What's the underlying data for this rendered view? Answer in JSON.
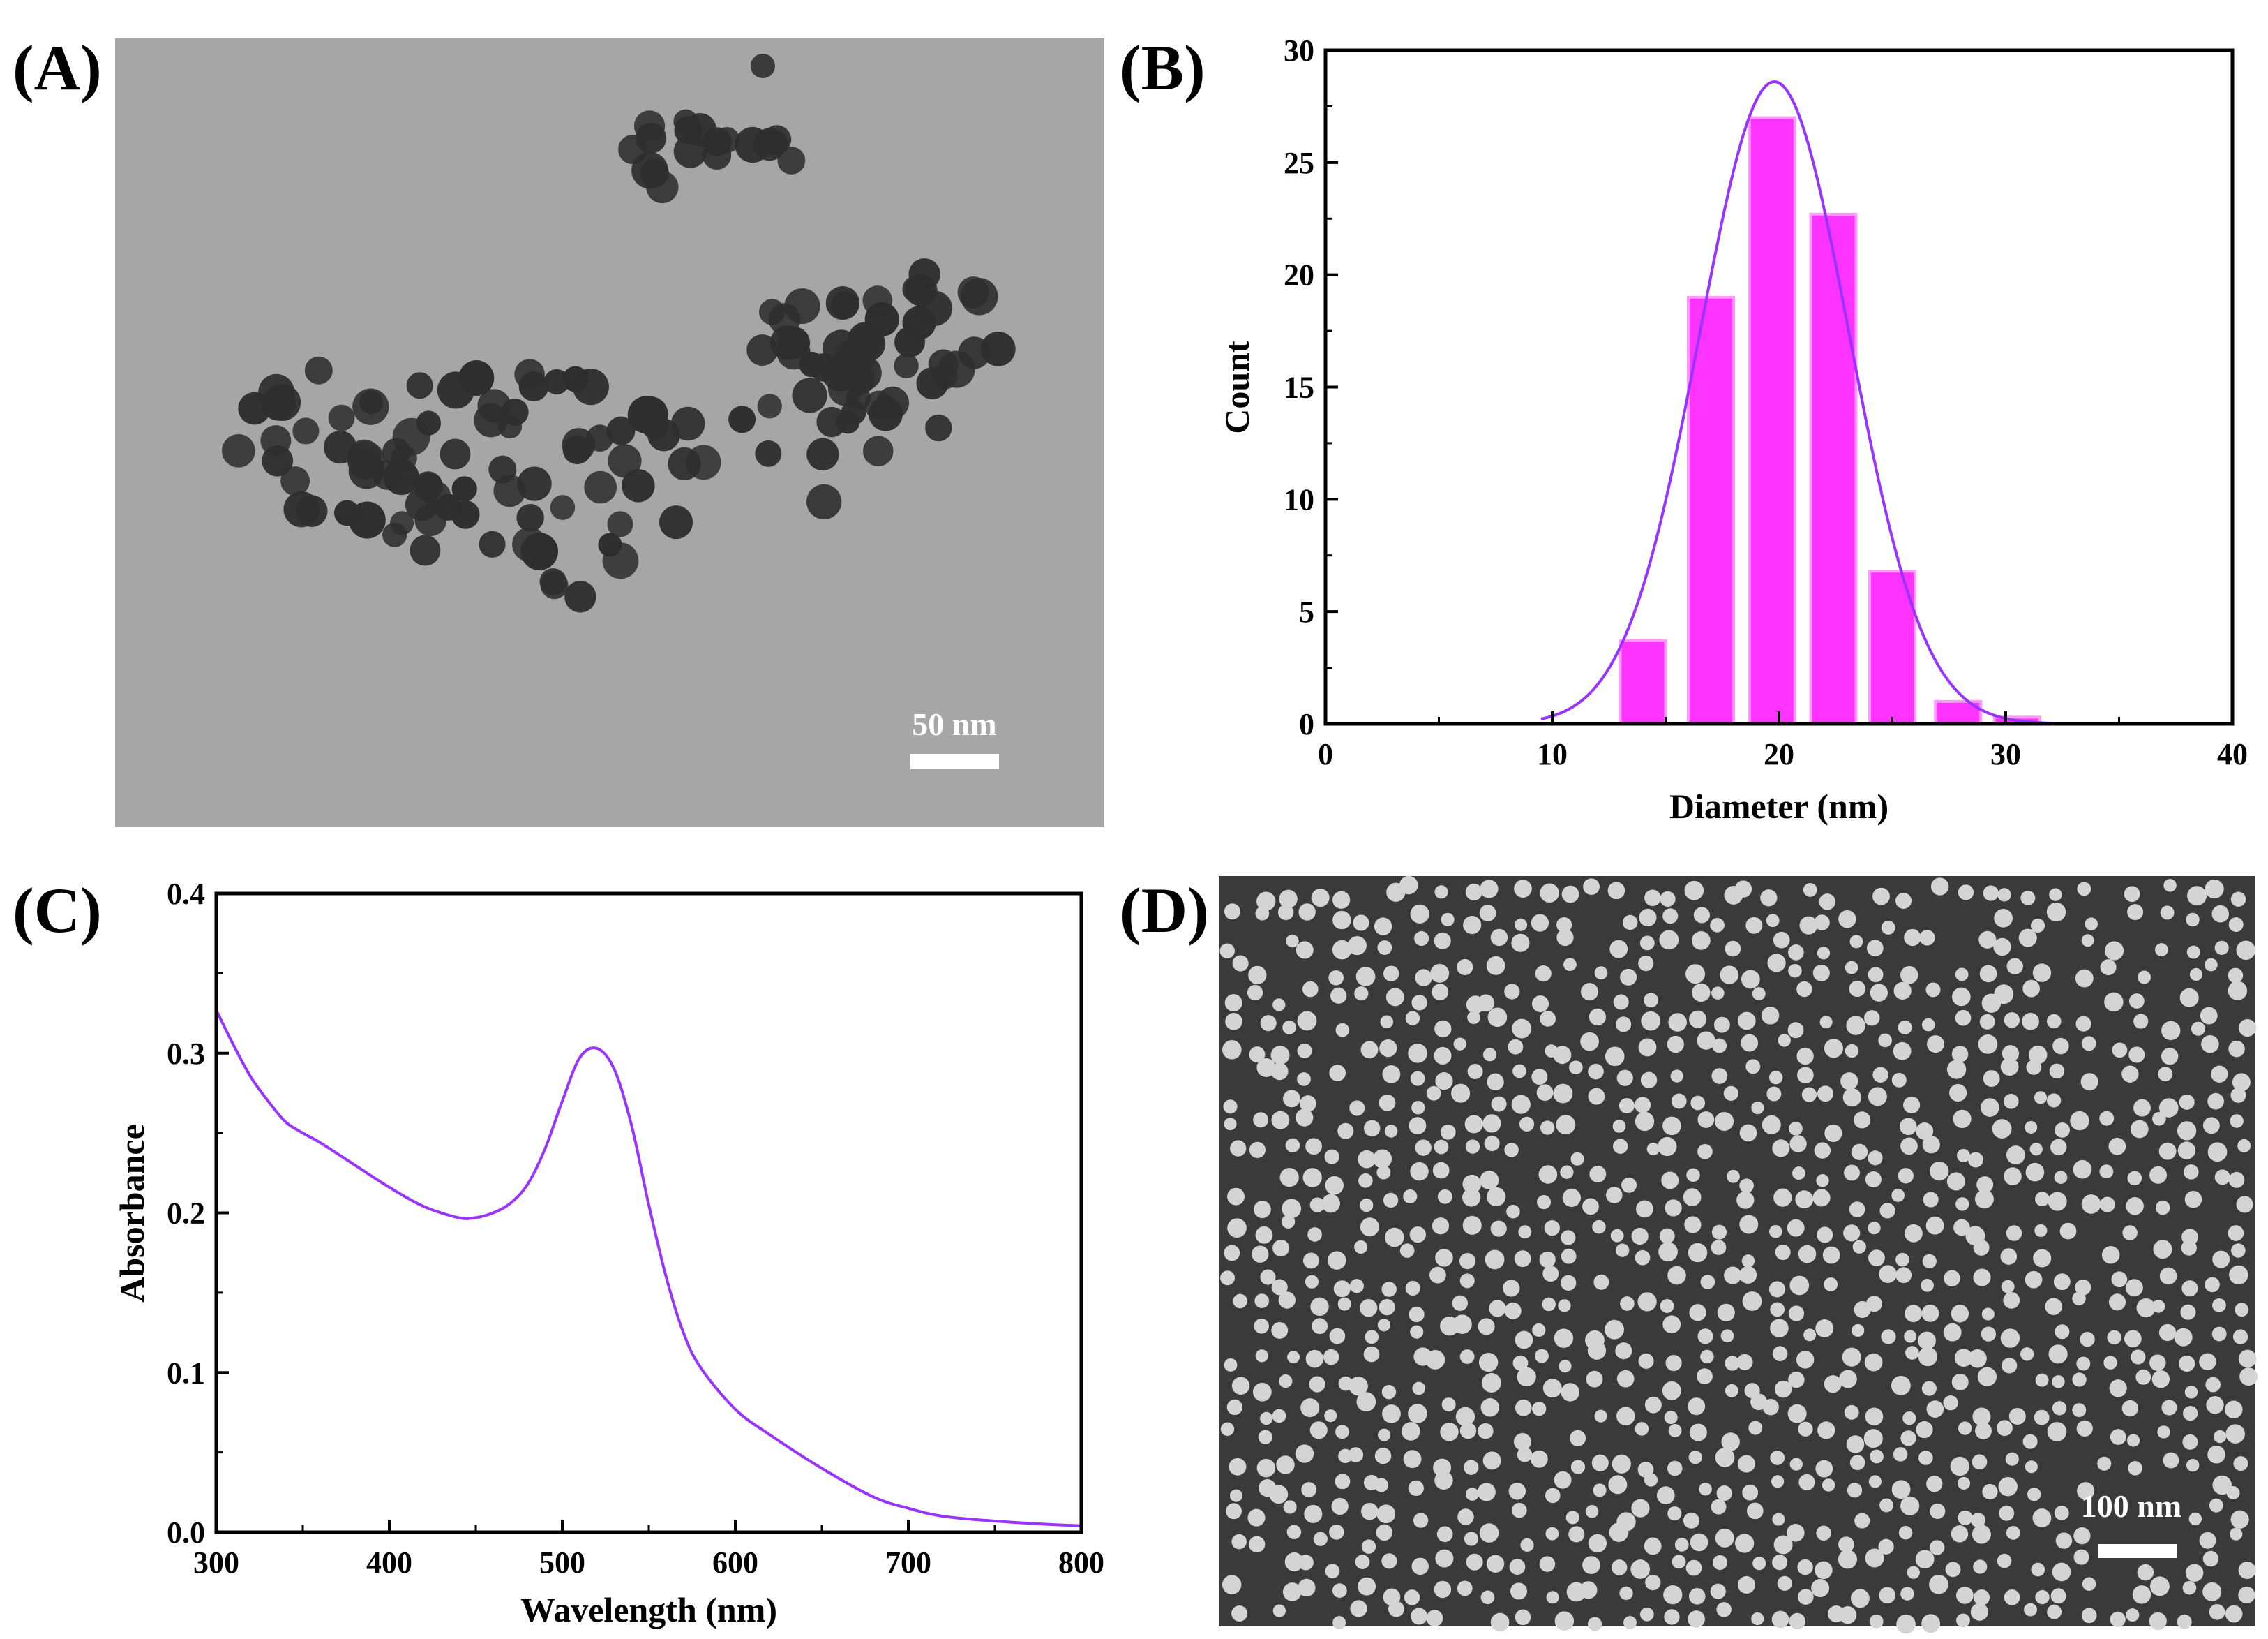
{
  "panels": {
    "a": {
      "label": "(A)",
      "scale_bar": "50 nm"
    },
    "b": {
      "label": "(B)"
    },
    "c": {
      "label": "(C)"
    },
    "d": {
      "label": "(D)",
      "scale_bar": "100 nm"
    }
  },
  "colors": {
    "histogram_bar": "#ff33ff",
    "histogram_edge": "#ff99ff",
    "fit_curve": "#9933ff",
    "spectrum_line": "#9933ff",
    "tem_background": "#a6a6a6",
    "tem_particle": "#2e2e2e",
    "sem_background": "#3a3a3a",
    "sem_particle": "#d4d4d4"
  },
  "chart_data": [
    {
      "id": "B",
      "type": "bar",
      "title": "",
      "xlabel": "Diameter (nm)",
      "ylabel": "Count",
      "xlim": [
        0,
        40
      ],
      "ylim": [
        0,
        30
      ],
      "xticks": [
        0,
        10,
        20,
        30,
        40
      ],
      "yticks": [
        0,
        5,
        10,
        15,
        20,
        25,
        30
      ],
      "bin_width": 2,
      "bin_centers": [
        14,
        17,
        19.7,
        22.4,
        25,
        27.9,
        30.5
      ],
      "values": [
        3.7,
        19,
        27,
        22.7,
        6.8,
        1,
        0.3
      ],
      "fit": {
        "type": "gaussian",
        "center": 19.8,
        "amplitude": 28.6,
        "sigma": 3.3,
        "x_range": [
          9.5,
          32
        ]
      },
      "grid": false
    },
    {
      "id": "C",
      "type": "line",
      "title": "",
      "xlabel": "Wavelength (nm)",
      "ylabel": "Absorbance",
      "xlim": [
        300,
        800
      ],
      "ylim": [
        0,
        0.4
      ],
      "xticks": [
        300,
        400,
        500,
        600,
        700,
        800
      ],
      "yticks": [
        "0.0",
        "0.1",
        "0.2",
        "0.3",
        "0.4"
      ],
      "series": [
        {
          "name": "Absorbance",
          "x": [
            300,
            310,
            320,
            330,
            340,
            350,
            360,
            380,
            400,
            420,
            440,
            450,
            460,
            470,
            480,
            490,
            500,
            510,
            520,
            530,
            540,
            550,
            560,
            570,
            580,
            600,
            620,
            650,
            680,
            700,
            720,
            750,
            780,
            800
          ],
          "y": [
            0.327,
            0.305,
            0.285,
            0.27,
            0.257,
            0.25,
            0.244,
            0.23,
            0.216,
            0.204,
            0.197,
            0.197,
            0.2,
            0.206,
            0.218,
            0.24,
            0.27,
            0.297,
            0.303,
            0.29,
            0.255,
            0.205,
            0.16,
            0.125,
            0.103,
            0.077,
            0.061,
            0.04,
            0.022,
            0.015,
            0.01,
            0.007,
            0.005,
            0.004
          ]
        }
      ],
      "grid": false
    }
  ]
}
